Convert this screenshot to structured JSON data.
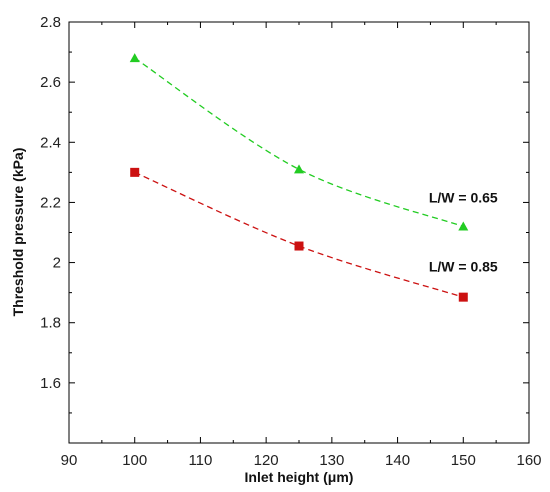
{
  "chart_data": {
    "type": "line",
    "title": "",
    "xlabel": "Inlet height (μm)",
    "ylabel": "Threshold pressure (kPa)",
    "xlim": [
      90,
      160
    ],
    "ylim": [
      1.4,
      2.8
    ],
    "xticks": [
      90,
      100,
      110,
      120,
      130,
      140,
      150,
      160
    ],
    "yticks": [
      1.6,
      1.8,
      2.0,
      2.2,
      2.4,
      2.6,
      2.8
    ],
    "xtick_labels": [
      "90",
      "100",
      "110",
      "120",
      "130",
      "140",
      "150",
      "160"
    ],
    "ytick_labels": [
      "1.6",
      "1.8",
      "2",
      "2.2",
      "2.4",
      "2.6",
      "2.8"
    ],
    "grid": false,
    "series": [
      {
        "name": "L/W = 0.65",
        "color": "#22cc22",
        "marker": "triangle",
        "line_style": "dashed",
        "x": [
          100,
          125,
          150
        ],
        "y": [
          2.68,
          2.31,
          2.12
        ]
      },
      {
        "name": "L/W = 0.85",
        "color": "#cc1111",
        "marker": "square",
        "line_style": "dashed",
        "x": [
          100,
          125,
          150
        ],
        "y": [
          2.3,
          2.055,
          1.885
        ]
      }
    ],
    "annotations": [
      {
        "text": "L/W = 0.65",
        "x": 150,
        "y": 2.2
      },
      {
        "text": "L/W = 0.85",
        "x": 150,
        "y": 1.97
      }
    ]
  }
}
